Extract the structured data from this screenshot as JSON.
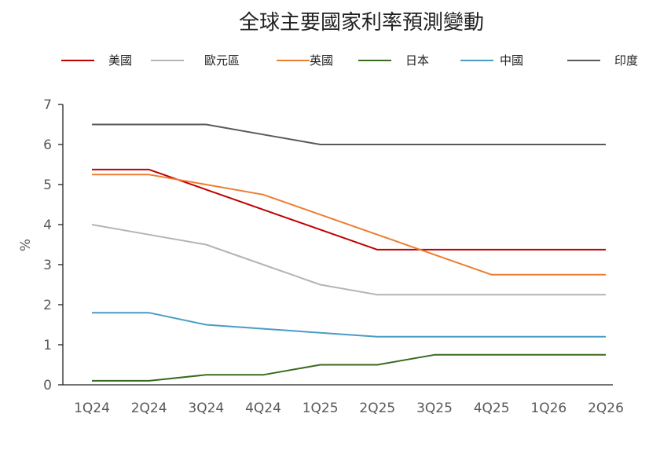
{
  "chart_data": {
    "type": "line",
    "title": "全球主要國家利率預測變動",
    "xlabel": "",
    "ylabel": "%",
    "categories": [
      "1Q24",
      "2Q24",
      "3Q24",
      "4Q24",
      "1Q25",
      "2Q25",
      "3Q25",
      "4Q25",
      "1Q26",
      "2Q26"
    ],
    "ylim": [
      0,
      7
    ],
    "yticks": [
      0,
      1,
      2,
      3,
      4,
      5,
      6,
      7
    ],
    "grid": false,
    "legend_position": "top",
    "series": [
      {
        "name": "美國",
        "color": "#c00000",
        "values": [
          5.375,
          5.375,
          4.875,
          4.375,
          3.875,
          3.375,
          3.375,
          3.375,
          3.375,
          3.375
        ]
      },
      {
        "name": "歐元區",
        "color": "#b4b4b4",
        "values": [
          4.0,
          3.75,
          3.5,
          3.0,
          2.5,
          2.25,
          2.25,
          2.25,
          2.25,
          2.25
        ]
      },
      {
        "name": "英國",
        "color": "#ed7d31",
        "values": [
          5.25,
          5.25,
          5.0,
          4.75,
          4.25,
          3.75,
          3.25,
          2.75,
          2.75,
          2.75
        ]
      },
      {
        "name": "日本",
        "color": "#3a6b1e",
        "values": [
          0.1,
          0.1,
          0.25,
          0.25,
          0.5,
          0.5,
          0.75,
          0.75,
          0.75,
          0.75
        ]
      },
      {
        "name": "中國",
        "color": "#4a9cc2",
        "values": [
          1.8,
          1.8,
          1.5,
          1.4,
          1.3,
          1.2,
          1.2,
          1.2,
          1.2,
          1.2
        ]
      },
      {
        "name": "印度",
        "color": "#595959",
        "values": [
          6.5,
          6.5,
          6.5,
          6.25,
          6.0,
          6.0,
          6.0,
          6.0,
          6.0,
          6.0
        ]
      }
    ]
  }
}
